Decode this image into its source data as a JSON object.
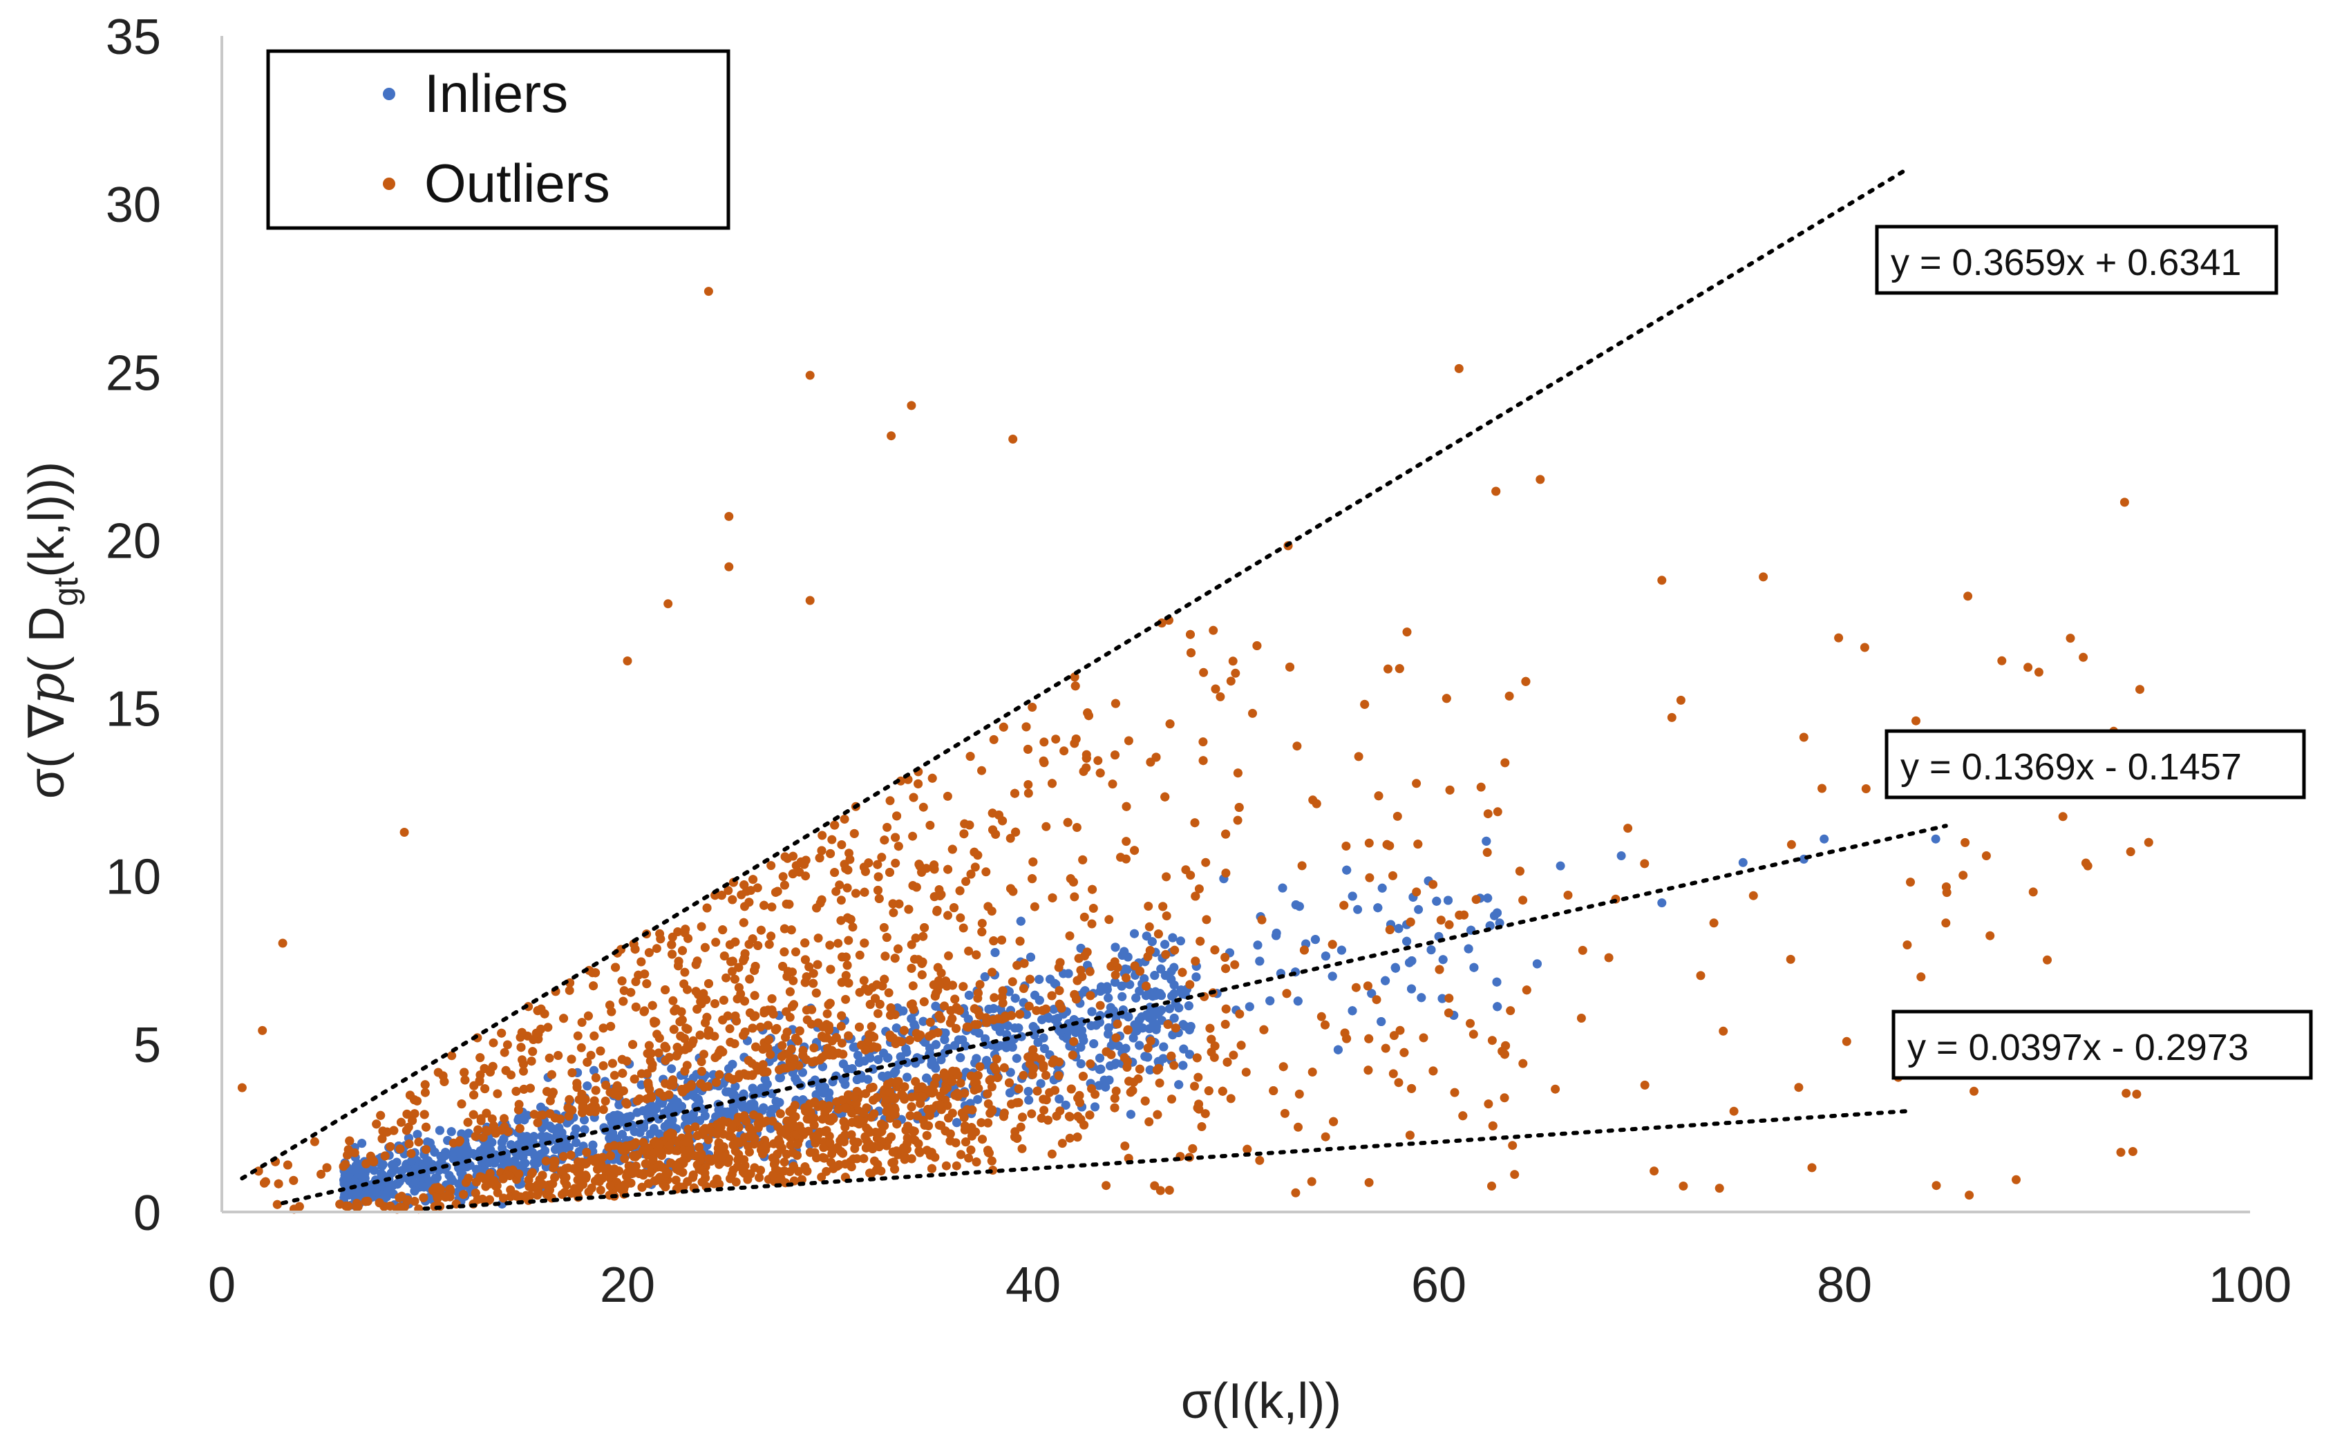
{
  "chart_data": {
    "type": "scatter",
    "title": "",
    "xlabel": "σ(I(k,l))",
    "ylabel": {
      "prefix": "σ( ∇",
      "symbol": "p",
      "mid": "( D",
      "subscript": "gt",
      "suffix": "(k,l)))"
    },
    "xlim": [
      0,
      100
    ],
    "ylim": [
      0,
      35
    ],
    "x_ticks": [
      "0",
      "20",
      "40",
      "60",
      "80",
      "100"
    ],
    "y_ticks": [
      "0",
      "5",
      "10",
      "15",
      "20",
      "25",
      "30",
      "35"
    ],
    "grid": false,
    "legend_position": "top-left",
    "series": [
      {
        "name": "Inliers",
        "color": "#4472c4",
        "trend": {
          "slope": 0.1369,
          "intercept": -0.1457,
          "spread": 0.045,
          "x_range": [
            5,
            85
          ],
          "density": "dense band"
        },
        "sample_points": [
          [
            66,
            10.3
          ],
          [
            69,
            10.6
          ],
          [
            71,
            9.2
          ],
          [
            75,
            10.4
          ],
          [
            78,
            10.5
          ],
          [
            79,
            11.1
          ],
          [
            84.5,
            11.1
          ],
          [
            59,
            9.0
          ],
          [
            63,
            8.6
          ],
          [
            60,
            8.2
          ],
          [
            56,
            9.0
          ],
          [
            52,
            8.3
          ]
        ]
      },
      {
        "name": "Outliers",
        "color": "#c55a11",
        "trend": {
          "upper_slope": 0.3659,
          "upper_intercept": 0.6341,
          "lower_slope": 0.0397,
          "lower_intercept": -0.2973,
          "x_range": [
            1,
            95
          ],
          "density": "dense wedge around band"
        },
        "sample_points": [
          [
            24,
            27.4
          ],
          [
            29,
            24.9
          ],
          [
            34,
            24.0
          ],
          [
            33,
            23.1
          ],
          [
            39,
            23.0
          ],
          [
            61,
            25.1
          ],
          [
            65,
            21.8
          ],
          [
            25,
            20.7
          ],
          [
            25,
            19.2
          ],
          [
            81,
            16.8
          ],
          [
            76,
            18.9
          ],
          [
            71,
            18.8
          ],
          [
            92,
            10.3
          ],
          [
            95,
            11.0
          ],
          [
            87,
            10.6
          ],
          [
            90,
            7.5
          ],
          [
            85,
            8.6
          ],
          [
            9,
            11.3
          ],
          [
            3,
            8.0
          ],
          [
            1,
            3.7
          ],
          [
            2,
            5.4
          ],
          [
            22,
            18.1
          ],
          [
            20,
            16.4
          ],
          [
            29,
            18.2
          ]
        ]
      }
    ],
    "trendlines": [
      {
        "label": "y = 0.3659x + 0.6341",
        "slope": 0.3659,
        "intercept": 0.6341,
        "x_start": 1,
        "x_end": 83,
        "style": "dotted"
      },
      {
        "label": "y = 0.1369x - 0.1457",
        "slope": 0.1369,
        "intercept": -0.1457,
        "x_start": 3,
        "x_end": 85,
        "style": "dotted"
      },
      {
        "label": "y = 0.0397x - 0.2973",
        "slope": 0.0397,
        "intercept": -0.2973,
        "x_start": 10,
        "x_end": 83,
        "style": "dotted"
      }
    ]
  }
}
